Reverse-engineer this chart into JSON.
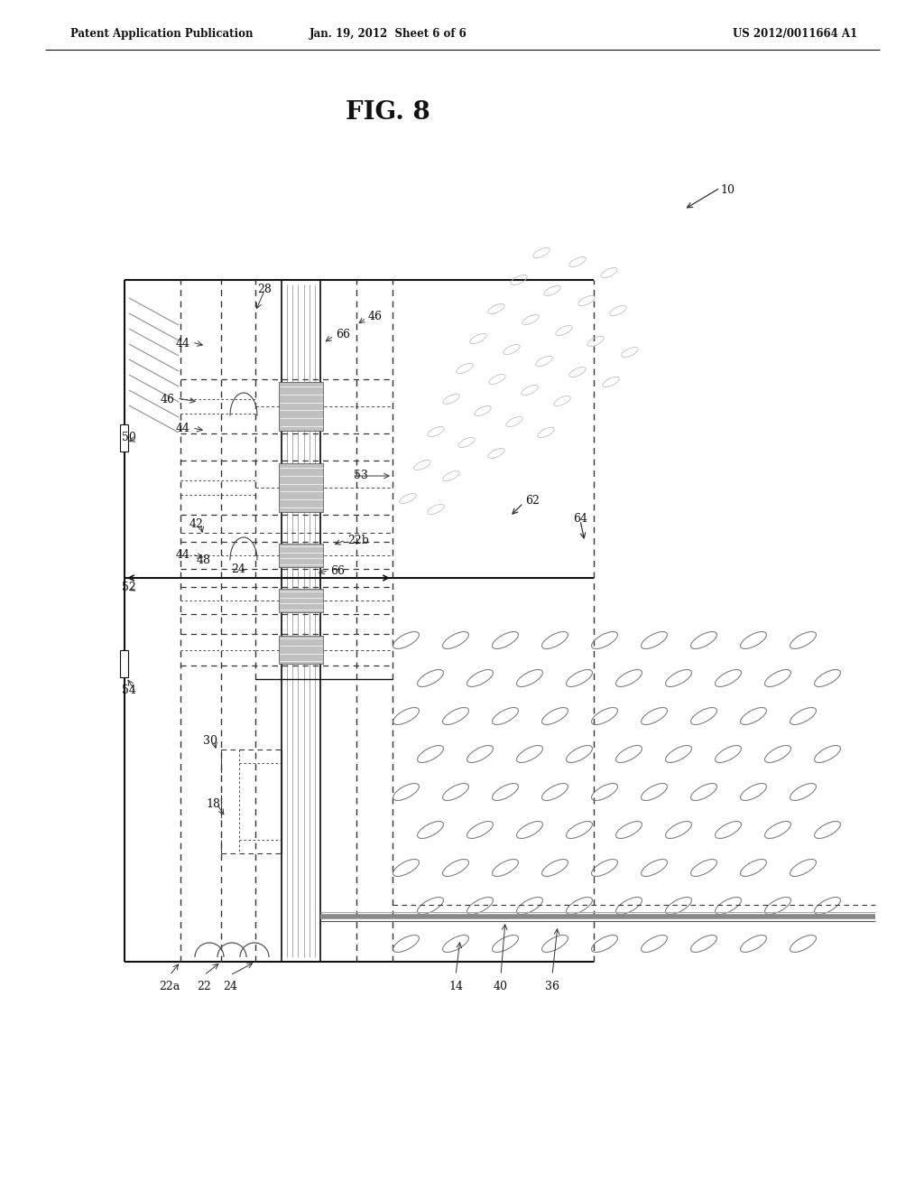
{
  "header_left": "Patent Application Publication",
  "header_center": "Jan. 19, 2012  Sheet 6 of 6",
  "header_right": "US 2012/0011664 A1",
  "fig_title": "FIG. 8",
  "bg_color": "#ffffff",
  "lc": "#111111",
  "gc": "#888888",
  "dgc": "#555555"
}
